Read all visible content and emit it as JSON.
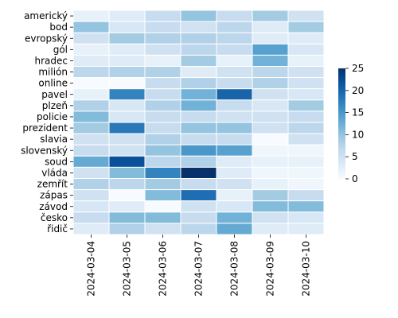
{
  "chart_data": {
    "type": "heatmap",
    "title": "",
    "xlabel": "",
    "ylabel": "",
    "x_categories": [
      "2024-03-04",
      "2024-03-05",
      "2024-03-06",
      "2024-03-07",
      "2024-03-08",
      "2024-03-09",
      "2024-03-10"
    ],
    "y_categories": [
      "americký",
      "bod",
      "evropský",
      "gól",
      "hradec",
      "milión",
      "online",
      "pavel",
      "plzeň",
      "policie",
      "prezident",
      "slavia",
      "slovenský",
      "soud",
      "vláda",
      "zemřít",
      "zápas",
      "závod",
      "česko",
      "řidič"
    ],
    "values": [
      [
        2,
        3,
        6,
        10,
        6,
        9,
        5
      ],
      [
        10,
        4,
        6,
        5,
        7,
        3,
        9
      ],
      [
        5,
        9,
        8,
        8,
        7,
        3,
        3
      ],
      [
        2,
        3,
        5,
        7,
        6,
        14,
        4
      ],
      [
        3,
        3,
        2,
        9,
        2,
        12,
        2
      ],
      [
        7,
        8,
        8,
        3,
        5,
        7,
        5
      ],
      [
        0,
        0,
        6,
        8,
        6,
        8,
        5
      ],
      [
        2,
        17,
        6,
        12,
        20,
        5,
        4
      ],
      [
        8,
        4,
        8,
        12,
        6,
        4,
        9
      ],
      [
        11,
        4,
        6,
        6,
        5,
        5,
        6
      ],
      [
        9,
        18,
        6,
        10,
        10,
        5,
        7
      ],
      [
        5,
        5,
        8,
        6,
        6,
        0,
        5
      ],
      [
        6,
        5,
        10,
        15,
        14,
        1,
        1
      ],
      [
        13,
        22,
        7,
        8,
        3,
        2,
        2
      ],
      [
        5,
        11,
        17,
        25,
        3,
        1,
        1
      ],
      [
        8,
        7,
        9,
        6,
        5,
        2,
        1
      ],
      [
        5,
        0,
        11,
        19,
        2,
        9,
        6
      ],
      [
        4,
        3,
        0,
        5,
        4,
        11,
        11
      ],
      [
        6,
        11,
        11,
        6,
        12,
        5,
        4
      ],
      [
        3,
        8,
        5,
        7,
        13,
        3,
        3
      ]
    ],
    "colorbar": {
      "min": 0,
      "max": 25,
      "ticks": [
        0,
        5,
        10,
        15,
        20,
        25
      ]
    },
    "colormap": "Blues",
    "grid": "white cell borders"
  }
}
